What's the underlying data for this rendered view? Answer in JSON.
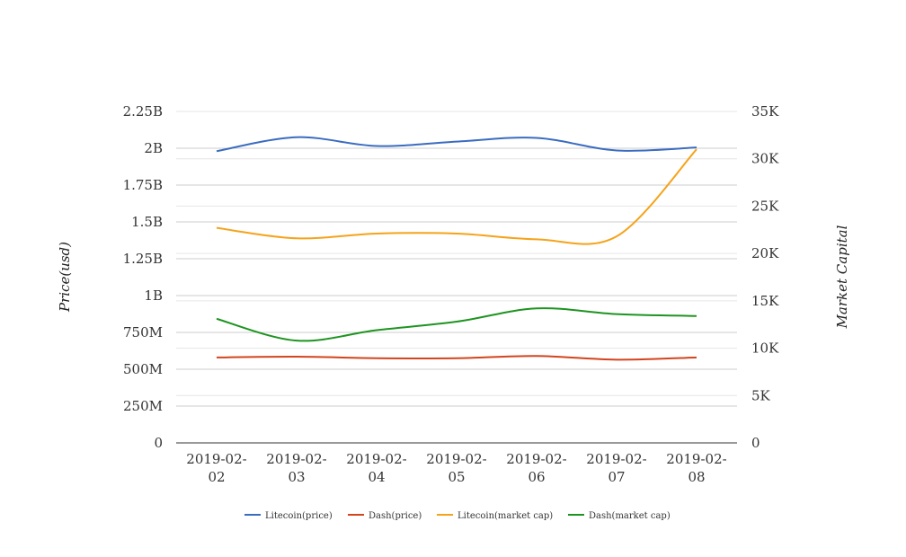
{
  "chart_data": {
    "type": "line",
    "x": [
      "2019-02-02",
      "2019-02-03",
      "2019-02-04",
      "2019-02-05",
      "2019-02-06",
      "2019-02-07",
      "2019-02-08"
    ],
    "x_tick_lines": [
      [
        "2019-02-",
        "02"
      ],
      [
        "2019-02-",
        "03"
      ],
      [
        "2019-02-",
        "04"
      ],
      [
        "2019-02-",
        "05"
      ],
      [
        "2019-02-",
        "06"
      ],
      [
        "2019-02-",
        "07"
      ],
      [
        "2019-02-",
        "08"
      ]
    ],
    "ylabel_left": "Price(usd)",
    "ylabel_right": "Market Capital",
    "ylim_left": [
      0,
      2250000000
    ],
    "ylim_right": [
      0,
      35000
    ],
    "yticks_left": [
      "0",
      "250M",
      "500M",
      "750M",
      "1B",
      "1.25B",
      "1.5B",
      "1.75B",
      "2B",
      "2.25B"
    ],
    "yticks_right": [
      "0",
      "5K",
      "10K",
      "15K",
      "20K",
      "25K",
      "30K",
      "35K"
    ],
    "grid": true,
    "legend_position": "bottom",
    "series": [
      {
        "name": "Litecoin(price)",
        "axis": "left",
        "color": "#3b6cc0",
        "values": [
          1980000000,
          2075000000,
          2015000000,
          2045000000,
          2070000000,
          1985000000,
          2005000000
        ]
      },
      {
        "name": "Dash(price)",
        "axis": "left",
        "color": "#d2451e",
        "values": [
          580000000,
          585000000,
          575000000,
          575000000,
          590000000,
          565000000,
          580000000
        ]
      },
      {
        "name": "Litecoin(market cap)",
        "axis": "right",
        "color": "#f5a31a",
        "values": [
          22700,
          21600,
          22100,
          22100,
          21500,
          21800,
          31000
        ]
      },
      {
        "name": "Dash(market cap)",
        "axis": "right",
        "color": "#1e9420",
        "values": [
          13100,
          10800,
          11900,
          12800,
          14200,
          13600,
          13400
        ]
      }
    ]
  }
}
